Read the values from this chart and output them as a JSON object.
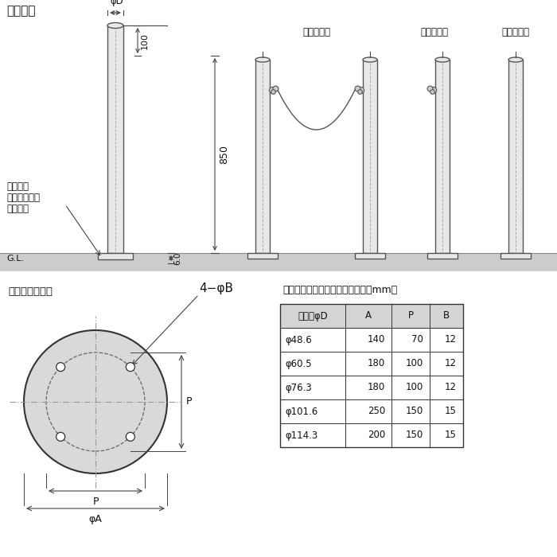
{
  "title_top": "製品図面",
  "label_phiD": "φD",
  "label_100": "100",
  "label_850": "850",
  "label_6": "6.0",
  "label_both_hook": "両フック付",
  "label_one_hook": "片フック付",
  "label_no_hook": "フックなし",
  "label_post_line1": "あと施工",
  "label_post_line2": "アンカー固定",
  "label_post_line3": "（別途）",
  "label_GL": "G.L.",
  "label_baseplate": "ベースプレート",
  "label_4phiB": "4−φB",
  "label_P_right": "P",
  "label_P_bottom": "P",
  "label_phiA": "φA",
  "table_title": "ベースプレート寸法表　＜単位：mm＞",
  "table_headers": [
    "支柱径φD",
    "A",
    "P",
    "B"
  ],
  "table_rows": [
    [
      "φ48.6",
      "140",
      "70",
      "12"
    ],
    [
      "φ60.5",
      "180",
      "100",
      "12"
    ],
    [
      "φ76.3",
      "180",
      "100",
      "12"
    ],
    [
      "φ101.6",
      "250",
      "150",
      "15"
    ],
    [
      "φ114.3",
      "200",
      "150",
      "15"
    ]
  ],
  "bg_color": "#ffffff",
  "ground_color": "#cccccc",
  "pole_color": "#e8e8e8",
  "pole_border": "#555555",
  "line_color": "#333333",
  "dim_color": "#444444",
  "table_header_bg": "#d4d4d4",
  "text_color": "#111111"
}
